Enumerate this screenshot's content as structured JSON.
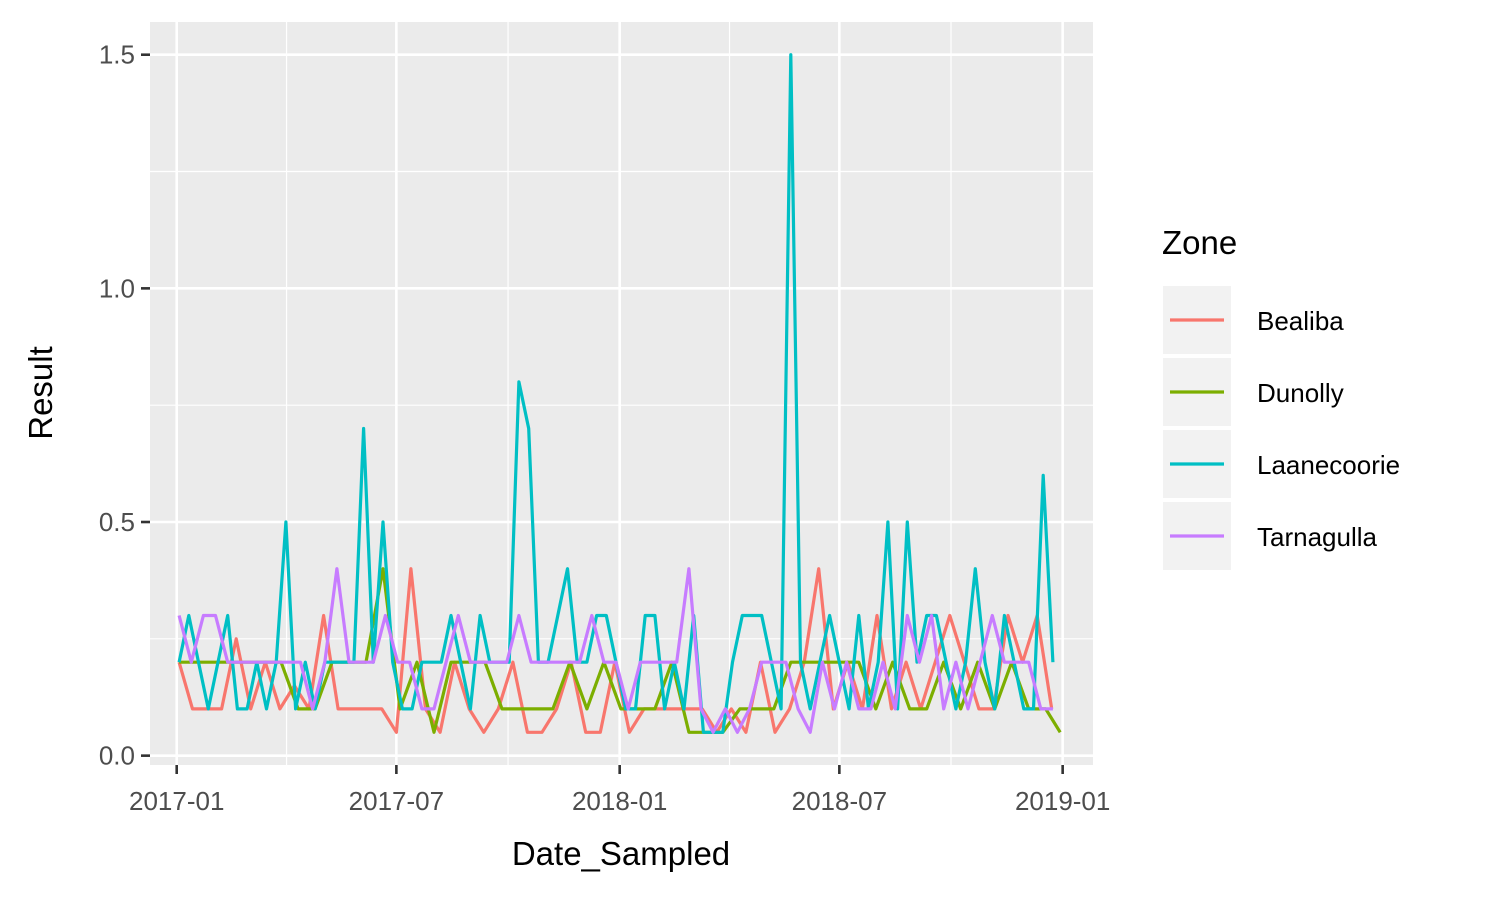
{
  "chart_data": {
    "type": "line",
    "xlabel": "Date_Sampled",
    "ylabel": "Result",
    "x_ticks": [
      "2017-01",
      "2017-07",
      "2018-01",
      "2018-07",
      "2019-01"
    ],
    "y_ticks": [
      "0.0",
      "0.5",
      "1.0",
      "1.5"
    ],
    "xlim": [
      "2016-12-10",
      "2019-01-26"
    ],
    "ylim": [
      -0.02,
      1.57
    ],
    "grid": true,
    "legend": {
      "title": "Zone",
      "position": "right"
    },
    "series": [
      {
        "name": "Bealiba",
        "color": "#F8766D",
        "x": [
          "2017-01-03",
          "2017-01-14",
          "2017-01-26",
          "2017-02-07",
          "2017-02-19",
          "2017-03-03",
          "2017-03-15",
          "2017-03-27",
          "2017-04-08",
          "2017-04-20",
          "2017-05-02",
          "2017-05-14",
          "2017-05-26",
          "2017-06-07",
          "2017-06-19",
          "2017-07-01",
          "2017-07-13",
          "2017-07-25",
          "2017-08-06",
          "2017-08-18",
          "2017-08-30",
          "2017-09-11",
          "2017-09-23",
          "2017-10-05",
          "2017-10-17",
          "2017-10-29",
          "2017-11-10",
          "2017-11-22",
          "2017-12-04",
          "2017-12-16",
          "2017-12-28",
          "2018-01-09",
          "2018-01-21",
          "2018-02-02",
          "2018-02-14",
          "2018-02-26",
          "2018-03-10",
          "2018-03-22",
          "2018-04-03",
          "2018-04-15",
          "2018-04-27",
          "2018-05-09",
          "2018-05-21",
          "2018-06-02",
          "2018-06-14",
          "2018-06-26",
          "2018-07-08",
          "2018-07-20",
          "2018-08-01",
          "2018-08-13",
          "2018-08-25",
          "2018-09-06",
          "2018-09-18",
          "2018-09-30",
          "2018-10-12",
          "2018-10-24",
          "2018-11-05",
          "2018-11-17",
          "2018-11-29",
          "2018-12-11",
          "2018-12-23"
        ],
        "values": [
          0.2,
          0.1,
          0.1,
          0.1,
          0.25,
          0.1,
          0.2,
          0.1,
          0.15,
          0.1,
          0.3,
          0.1,
          0.1,
          0.1,
          0.1,
          0.05,
          0.4,
          0.1,
          0.05,
          0.2,
          0.1,
          0.05,
          0.1,
          0.2,
          0.05,
          0.05,
          0.1,
          0.2,
          0.05,
          0.05,
          0.2,
          0.05,
          0.1,
          0.1,
          0.1,
          0.1,
          0.1,
          0.05,
          0.1,
          0.05,
          0.2,
          0.05,
          0.1,
          0.2,
          0.4,
          0.1,
          0.2,
          0.1,
          0.3,
          0.1,
          0.2,
          0.1,
          0.2,
          0.3,
          0.2,
          0.1,
          0.1,
          0.3,
          0.2,
          0.3,
          0.1
        ]
      },
      {
        "name": "Dunolly",
        "color": "#7CAE00",
        "x": [
          "2017-01-03",
          "2017-01-17",
          "2017-01-31",
          "2017-02-14",
          "2017-02-28",
          "2017-03-14",
          "2017-03-28",
          "2017-04-11",
          "2017-04-25",
          "2017-05-09",
          "2017-05-23",
          "2017-06-06",
          "2017-06-20",
          "2017-07-04",
          "2017-07-18",
          "2017-08-01",
          "2017-08-15",
          "2017-08-29",
          "2017-09-12",
          "2017-09-26",
          "2017-10-10",
          "2017-10-24",
          "2017-11-07",
          "2017-11-21",
          "2017-12-05",
          "2017-12-19",
          "2018-01-02",
          "2018-01-16",
          "2018-01-30",
          "2018-02-13",
          "2018-02-27",
          "2018-03-13",
          "2018-03-27",
          "2018-04-10",
          "2018-04-24",
          "2018-05-08",
          "2018-05-22",
          "2018-06-05",
          "2018-06-19",
          "2018-07-03",
          "2018-07-17",
          "2018-07-31",
          "2018-08-14",
          "2018-08-28",
          "2018-09-11",
          "2018-09-25",
          "2018-10-09",
          "2018-10-23",
          "2018-11-06",
          "2018-11-20",
          "2018-12-04",
          "2018-12-18",
          "2018-12-30"
        ],
        "values": [
          0.2,
          0.2,
          0.2,
          0.2,
          0.2,
          0.2,
          0.2,
          0.1,
          0.1,
          0.2,
          0.2,
          0.2,
          0.4,
          0.1,
          0.2,
          0.05,
          0.2,
          0.2,
          0.2,
          0.1,
          0.1,
          0.1,
          0.1,
          0.2,
          0.1,
          0.2,
          0.1,
          0.1,
          0.1,
          0.2,
          0.05,
          0.05,
          0.05,
          0.1,
          0.1,
          0.1,
          0.2,
          0.2,
          0.2,
          0.2,
          0.2,
          0.1,
          0.2,
          0.1,
          0.1,
          0.2,
          0.1,
          0.2,
          0.1,
          0.2,
          0.1,
          0.1,
          0.05
        ]
      },
      {
        "name": "Laanecoorie",
        "color": "#00BFC4",
        "x": [
          "2017-01-03",
          "2017-01-11",
          "2017-01-19",
          "2017-01-27",
          "2017-02-04",
          "2017-02-12",
          "2017-02-20",
          "2017-02-28",
          "2017-03-08",
          "2017-03-16",
          "2017-03-24",
          "2017-04-01",
          "2017-04-09",
          "2017-04-17",
          "2017-04-25",
          "2017-05-03",
          "2017-05-11",
          "2017-05-19",
          "2017-05-27",
          "2017-06-04",
          "2017-06-12",
          "2017-06-20",
          "2017-06-28",
          "2017-07-06",
          "2017-07-14",
          "2017-07-22",
          "2017-07-30",
          "2017-08-07",
          "2017-08-15",
          "2017-08-23",
          "2017-08-31",
          "2017-09-08",
          "2017-09-16",
          "2017-09-24",
          "2017-10-02",
          "2017-10-10",
          "2017-10-18",
          "2017-10-26",
          "2017-11-03",
          "2017-11-11",
          "2017-11-19",
          "2017-11-27",
          "2017-12-05",
          "2017-12-13",
          "2017-12-21",
          "2017-12-29",
          "2018-01-06",
          "2018-01-14",
          "2018-01-22",
          "2018-01-30",
          "2018-02-07",
          "2018-02-15",
          "2018-02-23",
          "2018-03-03",
          "2018-03-11",
          "2018-03-19",
          "2018-03-27",
          "2018-04-04",
          "2018-04-12",
          "2018-04-20",
          "2018-04-28",
          "2018-05-06",
          "2018-05-14",
          "2018-05-22",
          "2018-05-30",
          "2018-06-07",
          "2018-06-15",
          "2018-06-23",
          "2018-07-01",
          "2018-07-09",
          "2018-07-17",
          "2018-07-25",
          "2018-08-02",
          "2018-08-10",
          "2018-08-18",
          "2018-08-26",
          "2018-09-03",
          "2018-09-11",
          "2018-09-19",
          "2018-09-27",
          "2018-10-05",
          "2018-10-13",
          "2018-10-21",
          "2018-10-29",
          "2018-11-06",
          "2018-11-14",
          "2018-11-22",
          "2018-11-30",
          "2018-12-08",
          "2018-12-16",
          "2018-12-24"
        ],
        "values": [
          0.2,
          0.3,
          0.2,
          0.1,
          0.2,
          0.3,
          0.1,
          0.1,
          0.2,
          0.1,
          0.2,
          0.5,
          0.1,
          0.2,
          0.1,
          0.2,
          0.2,
          0.2,
          0.2,
          0.7,
          0.2,
          0.5,
          0.2,
          0.1,
          0.1,
          0.2,
          0.2,
          0.2,
          0.3,
          0.2,
          0.1,
          0.3,
          0.2,
          0.2,
          0.2,
          0.8,
          0.7,
          0.2,
          0.2,
          0.3,
          0.4,
          0.2,
          0.2,
          0.3,
          0.3,
          0.2,
          0.1,
          0.1,
          0.3,
          0.3,
          0.1,
          0.2,
          0.1,
          0.3,
          0.05,
          0.05,
          0.05,
          0.2,
          0.3,
          0.3,
          0.3,
          0.2,
          0.1,
          1.5,
          0.2,
          0.1,
          0.2,
          0.3,
          0.2,
          0.1,
          0.3,
          0.1,
          0.2,
          0.5,
          0.1,
          0.5,
          0.2,
          0.3,
          0.3,
          0.2,
          0.1,
          0.2,
          0.4,
          0.2,
          0.1,
          0.3,
          0.2,
          0.1,
          0.1,
          0.6,
          0.2
        ]
      },
      {
        "name": "Tarnagulla",
        "color": "#C77CFF",
        "x": [
          "2017-01-03",
          "2017-01-13",
          "2017-01-23",
          "2017-02-02",
          "2017-02-12",
          "2017-02-22",
          "2017-03-04",
          "2017-03-14",
          "2017-03-24",
          "2017-04-03",
          "2017-04-13",
          "2017-04-23",
          "2017-05-03",
          "2017-05-13",
          "2017-05-23",
          "2017-06-02",
          "2017-06-12",
          "2017-06-22",
          "2017-07-02",
          "2017-07-12",
          "2017-07-22",
          "2017-08-01",
          "2017-08-11",
          "2017-08-21",
          "2017-08-31",
          "2017-09-10",
          "2017-09-20",
          "2017-09-30",
          "2017-10-10",
          "2017-10-20",
          "2017-10-30",
          "2017-11-09",
          "2017-11-19",
          "2017-11-29",
          "2017-12-09",
          "2017-12-19",
          "2017-12-29",
          "2018-01-08",
          "2018-01-18",
          "2018-01-28",
          "2018-02-07",
          "2018-02-17",
          "2018-02-27",
          "2018-03-09",
          "2018-03-19",
          "2018-03-29",
          "2018-04-08",
          "2018-04-18",
          "2018-04-28",
          "2018-05-08",
          "2018-05-18",
          "2018-05-28",
          "2018-06-07",
          "2018-06-17",
          "2018-06-27",
          "2018-07-07",
          "2018-07-17",
          "2018-07-27",
          "2018-08-06",
          "2018-08-16",
          "2018-08-26",
          "2018-09-05",
          "2018-09-15",
          "2018-09-25",
          "2018-10-05",
          "2018-10-15",
          "2018-10-25",
          "2018-11-04",
          "2018-11-14",
          "2018-11-24",
          "2018-12-04",
          "2018-12-14",
          "2018-12-24"
        ],
        "values": [
          0.3,
          0.2,
          0.3,
          0.3,
          0.2,
          0.2,
          0.2,
          0.2,
          0.2,
          0.2,
          0.2,
          0.1,
          0.2,
          0.4,
          0.2,
          0.2,
          0.2,
          0.3,
          0.2,
          0.2,
          0.1,
          0.1,
          0.2,
          0.3,
          0.2,
          0.2,
          0.2,
          0.2,
          0.3,
          0.2,
          0.2,
          0.2,
          0.2,
          0.2,
          0.3,
          0.2,
          0.2,
          0.1,
          0.2,
          0.2,
          0.2,
          0.2,
          0.4,
          0.1,
          0.05,
          0.1,
          0.05,
          0.1,
          0.2,
          0.2,
          0.2,
          0.1,
          0.05,
          0.2,
          0.1,
          0.2,
          0.1,
          0.1,
          0.2,
          0.1,
          0.3,
          0.2,
          0.3,
          0.1,
          0.2,
          0.1,
          0.2,
          0.3,
          0.2,
          0.2,
          0.2,
          0.1,
          0.1
        ]
      }
    ]
  }
}
